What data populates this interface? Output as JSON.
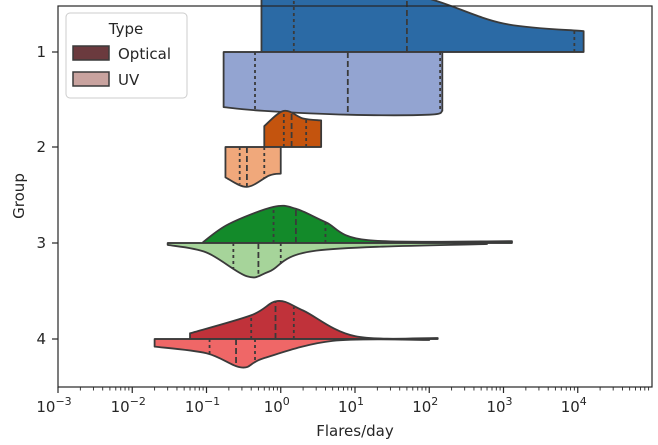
{
  "chart_data": {
    "type": "violin",
    "orientation": "horizontal",
    "split": true,
    "xscale": "log",
    "xlabel": "Flares/day",
    "ylabel": "Group",
    "xlim_exp": [
      -3,
      5
    ],
    "x_tick_exponents": [
      -3,
      -2,
      -1,
      0,
      1,
      2,
      3,
      4
    ],
    "categories": [
      "1",
      "2",
      "3",
      "4"
    ],
    "legend": {
      "title": "Type",
      "location": "upper-left",
      "entries": [
        {
          "label": "Optical",
          "color": "#6b3a3e"
        },
        {
          "label": "UV",
          "color": "#c9a39f"
        }
      ]
    },
    "series": [
      {
        "name": "Optical",
        "group": "1",
        "color": "#2b6aa5",
        "density": [
          [
            0.55,
            0.58
          ],
          [
            2,
            0.7
          ],
          [
            10,
            0.72
          ],
          [
            100,
            0.56
          ],
          [
            1000,
            0.3
          ],
          [
            12000,
            0.22
          ]
        ],
        "quartiles": [
          1.5,
          50,
          9000
        ]
      },
      {
        "name": "UV",
        "group": "1",
        "color": "#93a4d1",
        "density": [
          [
            0.17,
            0.58
          ],
          [
            0.6,
            0.62
          ],
          [
            8,
            0.66
          ],
          [
            100,
            0.66
          ],
          [
            150,
            0.62
          ]
        ],
        "quartiles": [
          0.45,
          8,
          140
        ]
      },
      {
        "name": "Optical",
        "group": "2",
        "color": "#c4540e",
        "density": [
          [
            0.6,
            0.22
          ],
          [
            1.1,
            0.38
          ],
          [
            2,
            0.3
          ],
          [
            3.5,
            0.28
          ]
        ],
        "quartiles": [
          1.1,
          1.4,
          2.2
        ]
      },
      {
        "name": "UV",
        "group": "2",
        "color": "#f0a87b",
        "density": [
          [
            0.18,
            0.32
          ],
          [
            0.35,
            0.42
          ],
          [
            0.7,
            0.3
          ],
          [
            1.0,
            0.28
          ]
        ],
        "quartiles": [
          0.28,
          0.35,
          0.6
        ]
      },
      {
        "name": "Optical",
        "group": "3",
        "color": "#138a2a",
        "density": [
          [
            0.09,
            0.01
          ],
          [
            0.2,
            0.2
          ],
          [
            0.8,
            0.38
          ],
          [
            1.6,
            0.36
          ],
          [
            4,
            0.22
          ],
          [
            15,
            0.03
          ],
          [
            1300,
            0.02
          ]
        ],
        "quartiles": [
          0.8,
          1.6,
          4.0
        ]
      },
      {
        "name": "UV",
        "group": "3",
        "color": "#a6d49a",
        "density": [
          [
            0.03,
            0.02
          ],
          [
            0.1,
            0.1
          ],
          [
            0.35,
            0.35
          ],
          [
            0.7,
            0.3
          ],
          [
            3,
            0.08
          ],
          [
            600,
            0.01
          ]
        ],
        "quartiles": [
          0.23,
          0.5,
          1.0
        ]
      },
      {
        "name": "Optical",
        "group": "4",
        "color": "#c0323a",
        "density": [
          [
            0.06,
            0.06
          ],
          [
            0.4,
            0.25
          ],
          [
            0.9,
            0.4
          ],
          [
            2,
            0.3
          ],
          [
            10,
            0.03
          ],
          [
            130,
            0.01
          ]
        ],
        "quartiles": [
          0.4,
          0.85,
          1.5
        ]
      },
      {
        "name": "UV",
        "group": "4",
        "color": "#ef6767",
        "density": [
          [
            0.02,
            0.08
          ],
          [
            0.1,
            0.15
          ],
          [
            0.3,
            0.3
          ],
          [
            0.6,
            0.2
          ],
          [
            5,
            0.02
          ],
          [
            100,
            0.01
          ]
        ],
        "quartiles": [
          0.11,
          0.25,
          0.45
        ]
      }
    ]
  }
}
